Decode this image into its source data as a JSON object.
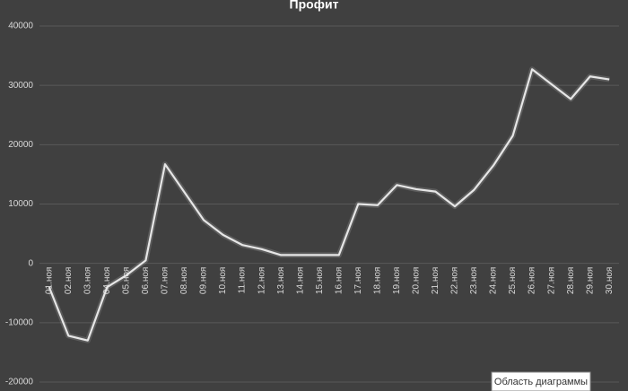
{
  "chart_data": {
    "type": "line",
    "title": "Профит",
    "categories": [
      "01.ноя",
      "02.ноя",
      "03.ноя",
      "04.ноя",
      "05.ноя",
      "06.ноя",
      "07.ноя",
      "08.ноя",
      "09.ноя",
      "10.ноя",
      "11.ноя",
      "12.ноя",
      "13.ноя",
      "14.ноя",
      "15.ноя",
      "16.ноя",
      "17.ноя",
      "18.ноя",
      "19.ноя",
      "20.ноя",
      "21.ноя",
      "22.ноя",
      "23.ноя",
      "24.ноя",
      "25.ноя",
      "26.ноя",
      "27.ноя",
      "28.ноя",
      "29.ноя",
      "30.ноя"
    ],
    "values": [
      -4000,
      -12200,
      -13000,
      -4000,
      -2000,
      500,
      16700,
      12000,
      7300,
      4800,
      3100,
      2400,
      1400,
      1400,
      1400,
      1400,
      10000,
      9800,
      13200,
      12500,
      12100,
      9600,
      12400,
      16500,
      21500,
      32700,
      30200,
      27700,
      31500,
      31000
    ],
    "color": "#e6e6e6",
    "ylim": [
      -20000,
      40000
    ],
    "yticks": [
      -20000,
      -10000,
      0,
      10000,
      20000,
      30000,
      40000
    ],
    "grid": true
  },
  "tooltip": "Область диаграммы"
}
